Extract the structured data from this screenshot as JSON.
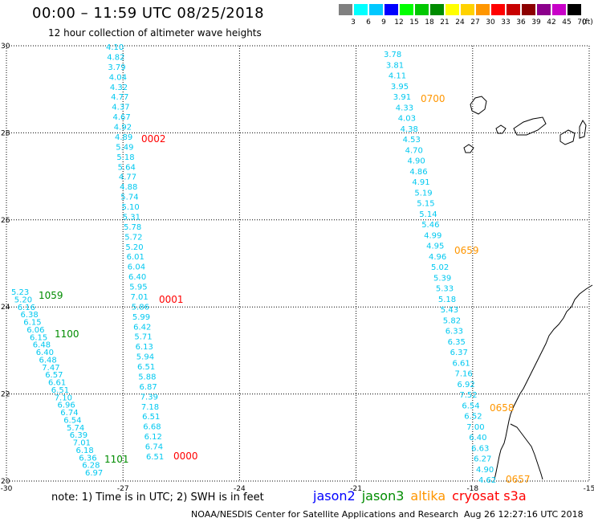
{
  "title": "00:00 – 11:59 UTC 08/25/2018",
  "subtitle": "12 hour collection of altimeter wave heights",
  "colorbar": {
    "unit": "(ft)",
    "swatches": [
      {
        "color": "#808080",
        "label": "3"
      },
      {
        "color": "#00ffff",
        "label": "6"
      },
      {
        "color": "#00c8ff",
        "label": "9"
      },
      {
        "color": "#0000ff",
        "label": "12"
      },
      {
        "color": "#00ff00",
        "label": "15"
      },
      {
        "color": "#00c800",
        "label": "18"
      },
      {
        "color": "#008c00",
        "label": "21"
      },
      {
        "color": "#ffff00",
        "label": "24"
      },
      {
        "color": "#ffd200",
        "label": "27"
      },
      {
        "color": "#ff9600",
        "label": "30"
      },
      {
        "color": "#ff0000",
        "label": "33"
      },
      {
        "color": "#c80000",
        "label": "36"
      },
      {
        "color": "#8c0000",
        "label": "39"
      },
      {
        "color": "#8c008c",
        "label": "42"
      },
      {
        "color": "#c800c8",
        "label": "45"
      },
      {
        "color": "#000000",
        "label": "70"
      }
    ]
  },
  "axes": {
    "x_ticks": [
      "-30",
      "-27",
      "-24",
      "-21",
      "-18",
      "-15"
    ],
    "y_ticks": [
      "30",
      "28",
      "26",
      "24",
      "22",
      "20"
    ]
  },
  "colors": {
    "jason2": "#0000ff",
    "jason3": "#008c00",
    "altika": "#ff9600",
    "cryosat": "#ff0000",
    "track_values": "#00c8f0"
  },
  "tracks": [
    {
      "name": "track-west-near",
      "times": [
        {
          "label": "1059",
          "sat": "jason3"
        },
        {
          "label": "1100",
          "sat": "jason3"
        },
        {
          "label": "1101",
          "sat": "jason3"
        }
      ],
      "values": [
        "5.23",
        "5.20",
        "6.16",
        "6.38",
        "6.15",
        "6.06",
        "6.15",
        "6.48",
        "6.40",
        "6.48",
        "7.47",
        "6.57",
        "6.61",
        "6.51",
        "7.10",
        "6.96",
        "6.74",
        "6.54",
        "5.74",
        "6.39",
        "7.01",
        "6.18",
        "6.36",
        "6.28",
        "6.97"
      ]
    },
    {
      "name": "track-central",
      "times": [
        {
          "label": "0002",
          "sat": "cryosat"
        },
        {
          "label": "0001",
          "sat": "cryosat"
        },
        {
          "label": "0000",
          "sat": "cryosat"
        }
      ],
      "values": [
        "4.10",
        "4.82",
        "3.79",
        "4.04",
        "4.32",
        "4.77",
        "4.37",
        "4.67",
        "4.92",
        "4.89",
        "5.49",
        "5.18",
        "5.64",
        "4.77",
        "4.88",
        "5.74",
        "5.10",
        "5.31",
        "5.78",
        "5.72",
        "5.20",
        "6.01",
        "6.04",
        "6.40",
        "5.95",
        "7.01",
        "5.86",
        "5.99",
        "6.42",
        "5.71",
        "6.13",
        "5.94",
        "6.51",
        "5.88",
        "6.87",
        "7.39",
        "7.18",
        "6.51",
        "6.68",
        "6.12",
        "6.74",
        "6.51"
      ]
    },
    {
      "name": "track-east",
      "times": [
        {
          "label": "0700",
          "sat": "altika"
        },
        {
          "label": "0659",
          "sat": "altika"
        },
        {
          "label": "0658",
          "sat": "altika"
        },
        {
          "label": "0657",
          "sat": "altika"
        }
      ],
      "values": [
        "3.78",
        "3.81",
        "4.11",
        "3.95",
        "3.91",
        "4.33",
        "4.03",
        "4.38",
        "4.53",
        "4.70",
        "4.90",
        "4.86",
        "4.91",
        "5.19",
        "5.15",
        "5.14",
        "5.46",
        "4.99",
        "4.95",
        "4.96",
        "5.02",
        "5.39",
        "5.33",
        "5.18",
        "5.43",
        "5.82",
        "6.33",
        "6.35",
        "6.37",
        "6.61",
        "7.16",
        "6.92",
        "7.52",
        "6.54",
        "6.52",
        "7.00",
        "6.40",
        "6.63",
        "6.27",
        "4.90",
        "4.62"
      ]
    }
  ],
  "note": "note:  1) Time is in UTC;  2) SWH is in feet",
  "legend": [
    {
      "name": "jason2",
      "sat": "jason2"
    },
    {
      "name": "jason3",
      "sat": "jason3"
    },
    {
      "name": "altika",
      "sat": "altika"
    },
    {
      "name": "cryosat s3a",
      "sat": "cryosat"
    }
  ],
  "credit": "NOAA/NESDIS Center for Satellite Applications and Research",
  "stamp": "Aug 26 12:27:16 UTC 2018"
}
